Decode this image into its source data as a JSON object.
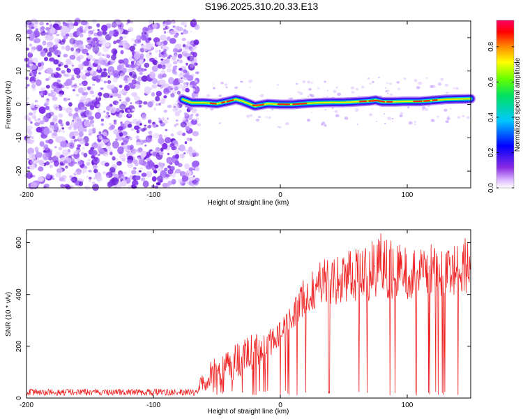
{
  "title": "S196.2025.310.20.33.E13",
  "chart_data": [
    {
      "type": "heatmap",
      "name": "spectrogram",
      "xlabel": "Height of straight line (km)",
      "ylabel": "Frequency (Hz)",
      "xlim": [
        -200,
        150
      ],
      "ylim": [
        -25,
        25
      ],
      "xticks": [
        -200,
        -100,
        0,
        100
      ],
      "yticks": [
        -20,
        -10,
        0,
        10,
        20
      ],
      "noise_region_x": [
        -200,
        -65
      ],
      "signal_start_x": -77,
      "ridge": {
        "x": [
          -77,
          -70,
          -60,
          -50,
          -40,
          -35,
          -30,
          -20,
          -10,
          0,
          10,
          20,
          30,
          40,
          50,
          60,
          70,
          75,
          80,
          90,
          100,
          110,
          120,
          130,
          140,
          150
        ],
        "freq": [
          1.5,
          0.5,
          0.5,
          0.2,
          1.0,
          1.5,
          1.0,
          -0.5,
          0.2,
          0.0,
          0.0,
          0.3,
          0.5,
          0.6,
          0.6,
          0.8,
          1.0,
          1.3,
          0.8,
          0.8,
          0.9,
          0.9,
          1.2,
          1.5,
          1.6,
          1.7
        ]
      },
      "colorbar": {
        "label": "Normalized spectral amplitude",
        "range": [
          0,
          0.95
        ],
        "ticks": [
          0.0,
          0.2,
          0.4,
          0.6,
          0.8
        ]
      }
    },
    {
      "type": "line",
      "name": "snr",
      "xlabel": "Height of straight line (km)",
      "ylabel": "SNR (10 * v/v)",
      "xlim": [
        -200,
        150
      ],
      "ylim": [
        0,
        650
      ],
      "xticks": [
        -200,
        -100,
        0,
        100
      ],
      "yticks": [
        0,
        200,
        400,
        600
      ],
      "color": "#ee2222",
      "envelope": {
        "x": [
          -200,
          -150,
          -100,
          -70,
          -65,
          -62,
          -60,
          -55,
          -40,
          -30,
          -20,
          -10,
          0,
          10,
          15,
          20,
          30,
          40,
          50,
          60,
          70,
          80,
          90,
          100,
          120,
          140,
          150
        ],
        "base": [
          10,
          10,
          10,
          10,
          10,
          45,
          15,
          25,
          50,
          80,
          120,
          150,
          200,
          260,
          300,
          330,
          350,
          360,
          360,
          370,
          370,
          380,
          380,
          380,
          390,
          390,
          400
        ],
        "peak": [
          35,
          35,
          35,
          35,
          35,
          95,
          80,
          140,
          200,
          230,
          250,
          260,
          300,
          370,
          430,
          480,
          520,
          560,
          570,
          580,
          600,
          640,
          600,
          580,
          600,
          610,
          650
        ]
      }
    }
  ]
}
